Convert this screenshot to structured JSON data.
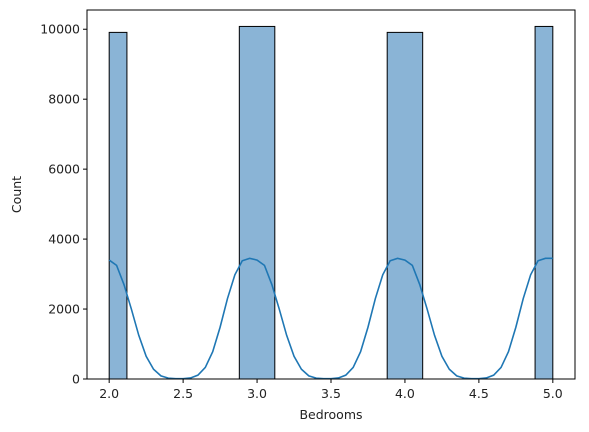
{
  "chart_data": {
    "type": "bar",
    "xlabel": "Bedrooms",
    "ylabel": "Count",
    "xlim": [
      1.85,
      5.15
    ],
    "ylim": [
      0,
      10550
    ],
    "x_ticks": [
      2.0,
      2.5,
      3.0,
      3.5,
      4.0,
      4.5,
      5.0
    ],
    "x_tick_labels": [
      "2.0",
      "2.5",
      "3.0",
      "3.5",
      "4.0",
      "4.5",
      "5.0"
    ],
    "y_ticks": [
      0,
      2000,
      4000,
      6000,
      8000,
      10000
    ],
    "y_tick_labels": [
      "0",
      "2000",
      "4000",
      "6000",
      "8000",
      "10000"
    ],
    "bin_width": 0.12,
    "bars": [
      {
        "x_start": 2.0,
        "x_end": 2.12,
        "count": 9910
      },
      {
        "x_start": 2.88,
        "x_end": 3.0,
        "count": 0
      },
      {
        "x_start": 2.88,
        "x_end": 3.12,
        "count": 10080
      },
      {
        "x_start": 3.88,
        "x_end": 4.12,
        "count": 9910
      },
      {
        "x_start": 4.88,
        "x_end": 5.0,
        "count": 10080
      }
    ],
    "kde": {
      "x": [
        2.0,
        2.05,
        2.1,
        2.15,
        2.2,
        2.25,
        2.3,
        2.35,
        2.4,
        2.45,
        2.5,
        2.55,
        2.6,
        2.65,
        2.7,
        2.75,
        2.8,
        2.85,
        2.9,
        2.95,
        3.0,
        3.05,
        3.1,
        3.15,
        3.2,
        3.25,
        3.3,
        3.35,
        3.4,
        3.45,
        3.5,
        3.55,
        3.6,
        3.65,
        3.7,
        3.75,
        3.8,
        3.85,
        3.9,
        3.95,
        4.0,
        4.05,
        4.1,
        4.15,
        4.2,
        4.25,
        4.3,
        4.35,
        4.4,
        4.45,
        4.5,
        4.55,
        4.6,
        4.65,
        4.7,
        4.75,
        4.8,
        4.85,
        4.9,
        4.95,
        5.0
      ],
      "y": [
        3400,
        3250,
        2700,
        2000,
        1250,
        650,
        280,
        90,
        25,
        8,
        10,
        30,
        110,
        330,
        780,
        1480,
        2300,
        2980,
        3380,
        3450,
        3400,
        3250,
        2700,
        2000,
        1250,
        650,
        280,
        90,
        25,
        8,
        10,
        30,
        110,
        330,
        780,
        1480,
        2300,
        2980,
        3380,
        3450,
        3400,
        3250,
        2700,
        2000,
        1250,
        650,
        280,
        90,
        25,
        8,
        10,
        30,
        110,
        330,
        780,
        1480,
        2300,
        2980,
        3380,
        3450,
        3450
      ]
    },
    "colors": {
      "bar_fill": "#8ab4d6",
      "bar_edge": "#000000",
      "kde_line": "#1f77b4",
      "axis": "#000000"
    },
    "grid": false
  }
}
